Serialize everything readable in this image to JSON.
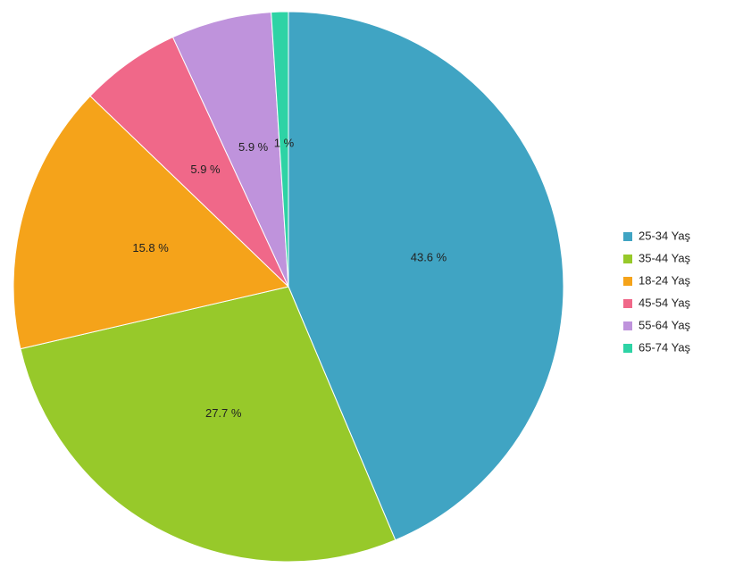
{
  "chart_data": {
    "type": "pie",
    "categories": [
      "25-34 Yaş",
      "35-44 Yaş",
      "18-24 Yaş",
      "45-54 Yaş",
      "55-64 Yaş",
      "65-74 Yaş"
    ],
    "values": [
      43.6,
      27.7,
      15.8,
      5.9,
      5.9,
      1
    ],
    "value_labels": [
      "43.6 %",
      "27.7 %",
      "15.8 %",
      "5.9 %",
      "5.9 %",
      "1 %"
    ],
    "colors": [
      "#40a4c3",
      "#97c92a",
      "#f5a31a",
      "#f06889",
      "#bf93dc",
      "#2ed3a5"
    ],
    "legend": "right"
  }
}
